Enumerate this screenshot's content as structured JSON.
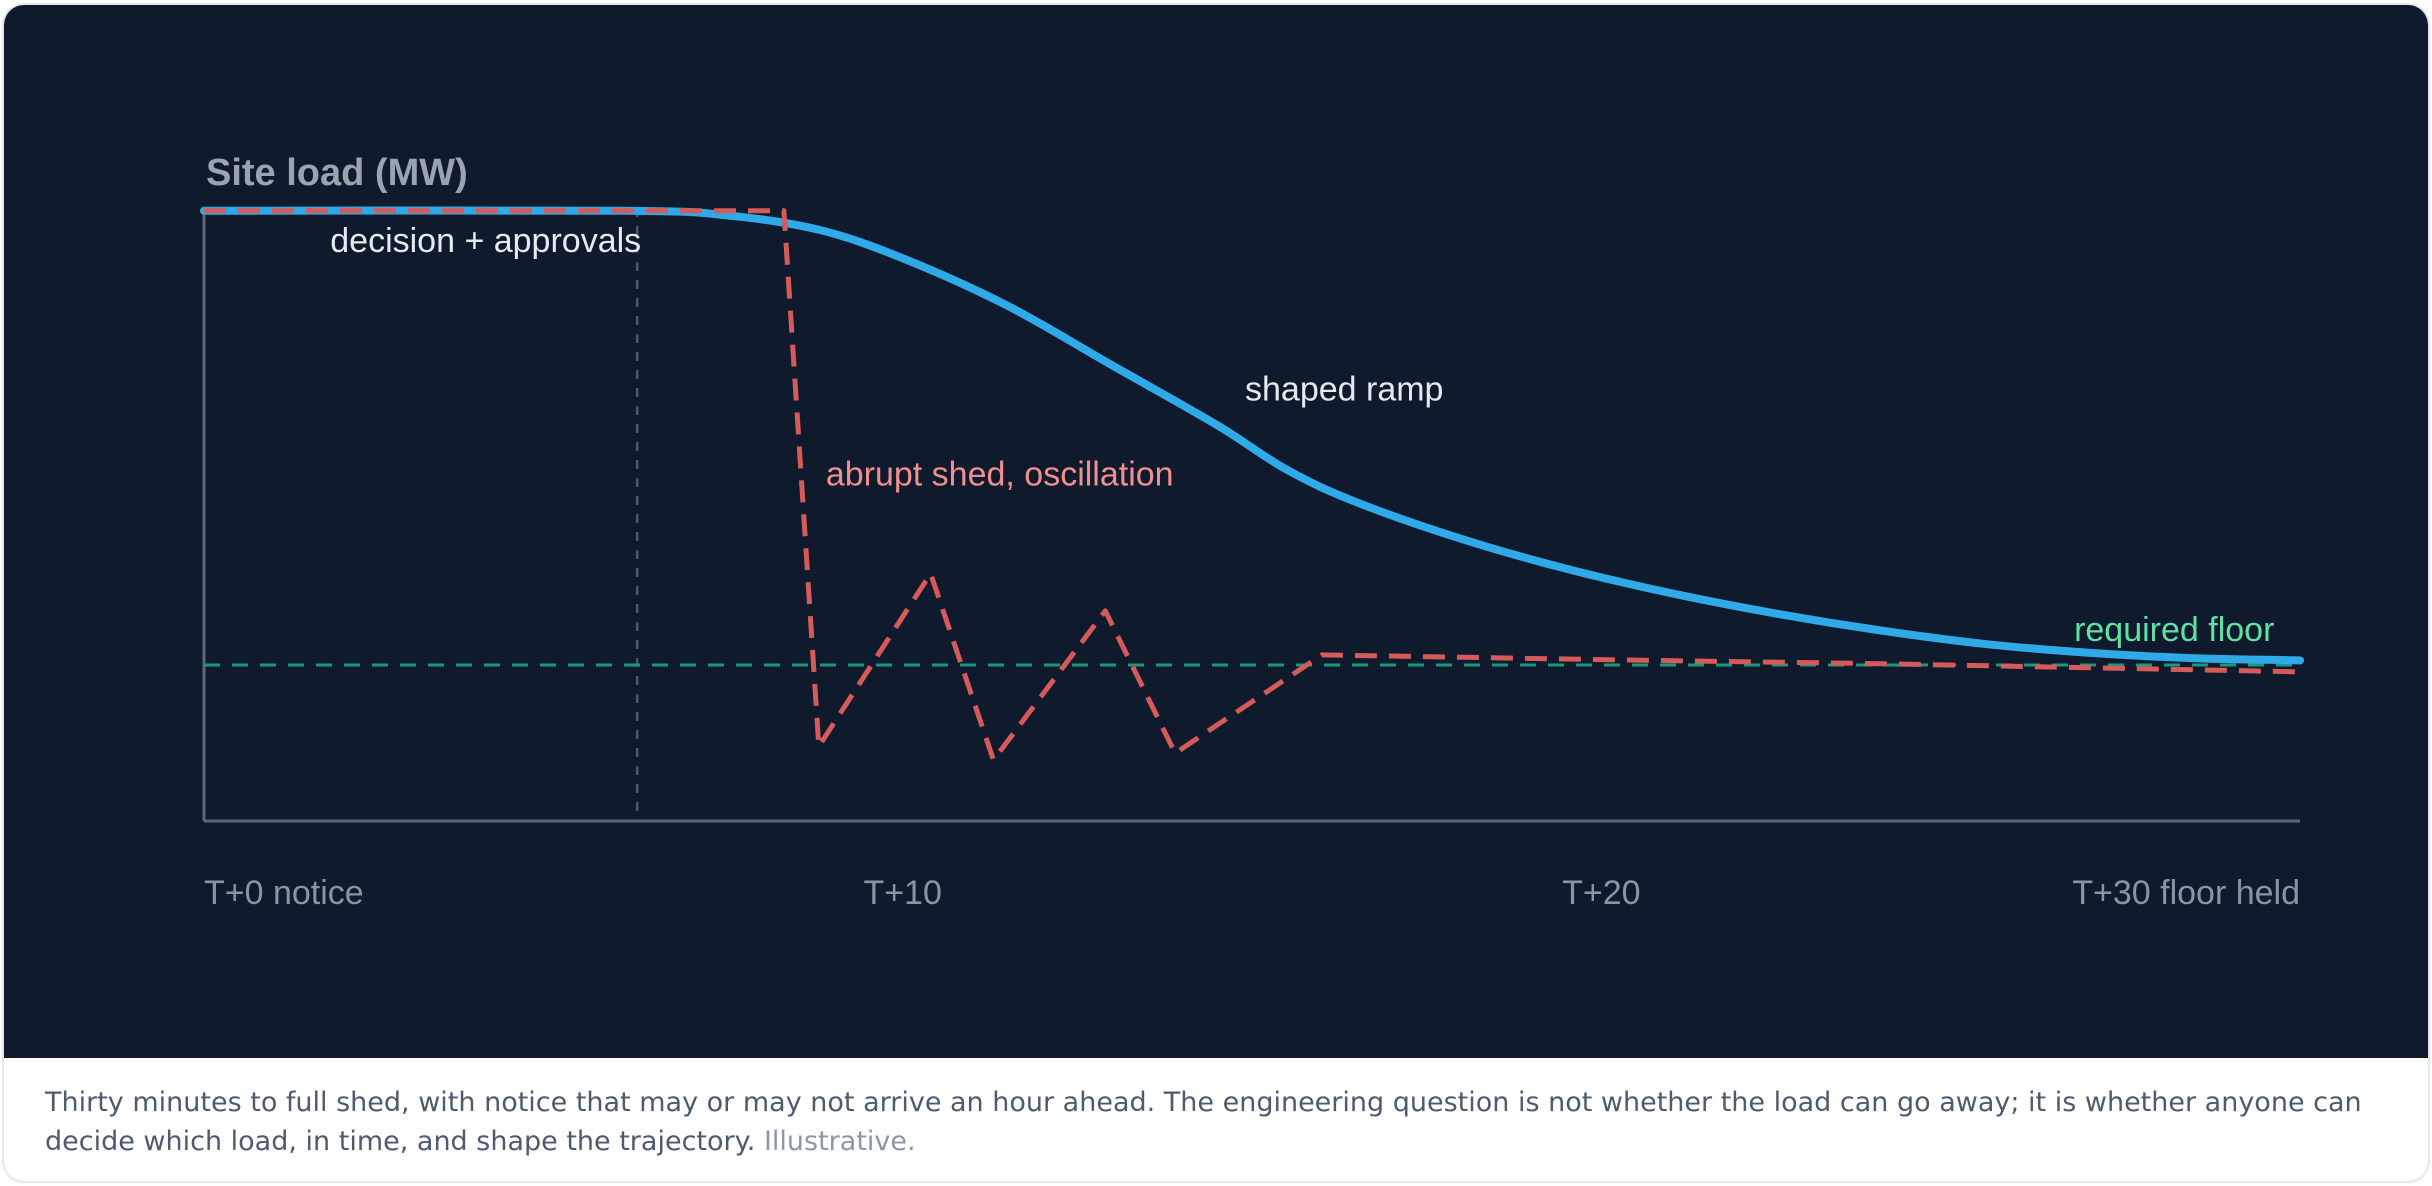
{
  "chart_data": {
    "type": "line",
    "ylabel": "Site load (MW)",
    "x_ticks": [
      {
        "x": 0,
        "label": "T+0 notice"
      },
      {
        "x": 10,
        "label": "T+10"
      },
      {
        "x": 20,
        "label": "T+20"
      },
      {
        "x": 30,
        "label": "T+30 floor held"
      }
    ],
    "xlim": [
      0,
      30
    ],
    "ylim": [
      0,
      1
    ],
    "grid": false,
    "decision_marker": {
      "x": 6.2,
      "label": "decision + approvals"
    },
    "floor": {
      "y": 0.23,
      "label": "required floor",
      "color": "#1a9a7c",
      "label_color": "#5fe0a5"
    },
    "series": [
      {
        "label": "shaped ramp",
        "color": "#2fa9e8",
        "style": "solid",
        "points": [
          [
            0,
            0.9
          ],
          [
            6.0,
            0.9
          ],
          [
            7.5,
            0.893
          ],
          [
            8.8,
            0.872
          ],
          [
            10.0,
            0.83
          ],
          [
            11.5,
            0.76
          ],
          [
            13.0,
            0.672
          ],
          [
            14.5,
            0.584
          ],
          [
            15.5,
            0.518
          ],
          [
            16.5,
            0.47
          ],
          [
            18.0,
            0.416
          ],
          [
            19.5,
            0.372
          ],
          [
            21.0,
            0.336
          ],
          [
            22.5,
            0.306
          ],
          [
            24.0,
            0.281
          ],
          [
            25.5,
            0.261
          ],
          [
            27.0,
            0.248
          ],
          [
            28.5,
            0.24
          ],
          [
            30.0,
            0.237
          ]
        ]
      },
      {
        "label": "abrupt shed, oscillation",
        "color": "#d65a5a",
        "label_color": "#f08f8f",
        "style": "dashed",
        "points": [
          [
            0,
            0.9
          ],
          [
            8.3,
            0.9
          ],
          [
            8.8,
            0.11
          ],
          [
            10.4,
            0.365
          ],
          [
            11.3,
            0.09
          ],
          [
            12.9,
            0.31
          ],
          [
            13.9,
            0.1
          ],
          [
            16.0,
            0.245
          ],
          [
            20.0,
            0.238
          ],
          [
            24.0,
            0.232
          ],
          [
            27.0,
            0.226
          ],
          [
            30.0,
            0.22
          ]
        ]
      }
    ]
  },
  "caption": {
    "text": "Thirty minutes to full shed, with notice that may or may not arrive an hour ahead. The engineering question is not whether the load can go away; it is whether anyone can decide which load, in time, and shape the trajectory.",
    "note": "Illustrative."
  }
}
